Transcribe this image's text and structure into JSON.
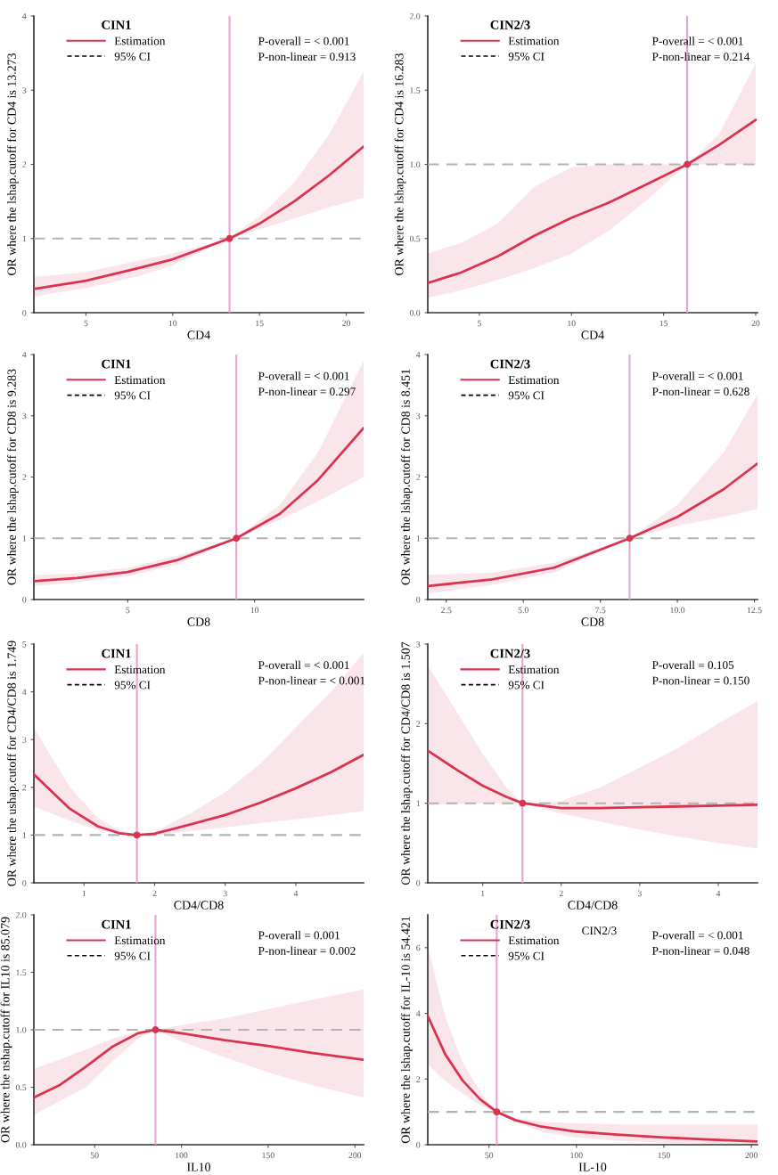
{
  "chart_data": [
    {
      "type": "line",
      "legend_title": "CIN1",
      "xlabel": "CD4",
      "ylabel": "OR where the lshap.cutoff for CD4 is 13.273",
      "xlim": [
        2,
        21
      ],
      "xticks": [
        5,
        10,
        15,
        20
      ],
      "ylim": [
        0,
        4
      ],
      "yticks": [
        0,
        1,
        2,
        3,
        4
      ],
      "legend": "top left",
      "grid": false,
      "annotations": [
        "95% CI",
        "P-overall = < 0.001",
        "P-non-linear = 0.913"
      ],
      "ref_lines": [
        {
          "axis": "x",
          "value": 13.273,
          "color": "#e9a3cc"
        },
        {
          "axis": "y",
          "value": 1,
          "color": "#b3b3b3",
          "line_style": "dashed"
        }
      ],
      "series": [
        {
          "name": "Estimation",
          "color": "#d9334f",
          "x": [
            2,
            5,
            8,
            10,
            13.273,
            15,
            17,
            19,
            21
          ],
          "values": [
            0.32,
            0.43,
            0.6,
            0.72,
            1,
            1.2,
            1.5,
            1.85,
            2.24
          ],
          "lower": [
            0.22,
            0.33,
            0.49,
            0.64,
            1,
            1.12,
            1.27,
            1.42,
            1.55
          ],
          "upper": [
            0.48,
            0.55,
            0.7,
            0.8,
            1,
            1.3,
            1.75,
            2.4,
            3.25
          ]
        },
        {
          "type": "scatter",
          "color": "#d9334f",
          "marker": "circle",
          "x": [
            13.273
          ],
          "values": [
            1
          ]
        }
      ]
    },
    {
      "type": "line",
      "legend_title": "CIN2/3",
      "xlabel": "CD4",
      "ylabel": "OR where the lshap.cutoff for CD4 is 16.283",
      "xlim": [
        2.2,
        20.1
      ],
      "xticks": [
        5,
        10,
        15,
        20
      ],
      "ylim": [
        0,
        2
      ],
      "yticks": [
        {
          "value": 0,
          "label": "0.0"
        },
        0.5,
        {
          "value": 1,
          "label": "1.0"
        },
        1.5,
        {
          "value": 2,
          "label": "2.0"
        }
      ],
      "legend": "top left",
      "grid": false,
      "annotations": [
        "95% CI",
        "P-overall = < 0.001",
        "P-non-linear = 0.214"
      ],
      "ref_lines": [
        {
          "axis": "x",
          "value": 16.283,
          "color": "#e9a3cc"
        },
        {
          "axis": "y",
          "value": 1,
          "color": "#b3b3b3",
          "line_style": "dashed"
        }
      ],
      "series": [
        {
          "name": "Estimation",
          "color": "#d9334f",
          "x": [
            2.2,
            4,
            6,
            8,
            10,
            12,
            14,
            16.283,
            18,
            20
          ],
          "values": [
            0.2,
            0.27,
            0.38,
            0.52,
            0.64,
            0.74,
            0.86,
            1,
            1.13,
            1.3
          ],
          "lower": [
            0.1,
            0.15,
            0.22,
            0.3,
            0.4,
            0.55,
            0.75,
            1,
            1,
            1
          ],
          "upper": [
            0.4,
            0.47,
            0.6,
            0.85,
            0.98,
            1,
            1,
            1,
            1.2,
            1.68
          ]
        },
        {
          "type": "scatter",
          "color": "#d9334f",
          "marker": "circle",
          "x": [
            16.283
          ],
          "values": [
            1
          ]
        }
      ]
    },
    {
      "type": "line",
      "legend_title": "CIN1",
      "xlabel": "CD8",
      "ylabel": "OR where the lshap.cutoff for CD8 is 9.283",
      "xlim": [
        1.3,
        14.3
      ],
      "xticks": [
        5,
        10
      ],
      "ylim": [
        0,
        4
      ],
      "yticks": [
        0,
        1,
        2,
        3,
        4
      ],
      "legend": "top left",
      "grid": false,
      "annotations": [
        "95% CI",
        "P-overall = < 0.001",
        "P-non-linear = 0.297"
      ],
      "ref_lines": [
        {
          "axis": "x",
          "value": 9.283,
          "color": "#e9a3cc"
        },
        {
          "axis": "y",
          "value": 1,
          "color": "#b3b3b3",
          "line_style": "dashed"
        }
      ],
      "series": [
        {
          "name": "Estimation",
          "color": "#d9334f",
          "x": [
            1.3,
            3,
            5,
            7,
            9.283,
            11,
            12.5,
            14.3
          ],
          "values": [
            0.3,
            0.35,
            0.45,
            0.65,
            1,
            1.4,
            1.95,
            2.8
          ],
          "lower": [
            0.22,
            0.28,
            0.38,
            0.58,
            1,
            1.3,
            1.6,
            2.0
          ],
          "upper": [
            0.4,
            0.43,
            0.52,
            0.72,
            1,
            1.55,
            2.4,
            3.9
          ]
        },
        {
          "type": "scatter",
          "color": "#d9334f",
          "marker": "circle",
          "x": [
            9.283
          ],
          "values": [
            1
          ]
        }
      ]
    },
    {
      "type": "line",
      "legend_title": "CIN2/3",
      "xlabel": "CD8",
      "ylabel": "OR where the lshap.cutoff for CD8 is 8.451",
      "xlim": [
        1.9,
        12.6
      ],
      "xticks": [
        {
          "value": 2.5,
          "label": "2.5"
        },
        {
          "value": 5,
          "label": "5.0"
        },
        {
          "value": 7.5,
          "label": "7.5"
        },
        {
          "value": 10,
          "label": "10.0"
        },
        {
          "value": 12.5,
          "label": "12.5"
        }
      ],
      "ylim": [
        0,
        4
      ],
      "yticks": [
        0,
        1,
        2,
        3,
        4
      ],
      "legend": "top left",
      "grid": false,
      "annotations": [
        "95% CI",
        "P-overall = < 0.001",
        "P-non-linear = 0.628"
      ],
      "ref_lines": [
        {
          "axis": "x",
          "value": 8.451,
          "color": "#e9a3cc"
        },
        {
          "axis": "y",
          "value": 1,
          "color": "#b3b3b3",
          "line_style": "dashed"
        }
      ],
      "series": [
        {
          "name": "Estimation",
          "color": "#d9334f",
          "x": [
            1.9,
            4,
            6,
            8.451,
            10,
            11.5,
            12.6
          ],
          "values": [
            0.22,
            0.33,
            0.52,
            1,
            1.35,
            1.8,
            2.22
          ],
          "lower": [
            0.1,
            0.24,
            0.44,
            1,
            1.2,
            1.35,
            1.48
          ],
          "upper": [
            0.4,
            0.44,
            0.6,
            1,
            1.55,
            2.4,
            3.35
          ]
        },
        {
          "type": "scatter",
          "color": "#d9334f",
          "marker": "circle",
          "x": [
            8.451
          ],
          "values": [
            1
          ]
        }
      ]
    },
    {
      "type": "line",
      "legend_title": "CIN1",
      "xlabel": "CD4/CD8",
      "ylabel": "OR where the ushap.cutoff for CD4/CD8 is 1.749",
      "xlim": [
        0.29,
        4.96
      ],
      "xticks": [
        1,
        2,
        3,
        4
      ],
      "ylim": [
        0,
        5
      ],
      "yticks": [
        0,
        1,
        2,
        3,
        4,
        5
      ],
      "legend": "top left",
      "grid": false,
      "annotations": [
        "95% CI",
        "P-overall = < 0.001",
        "P-non-linear = < 0.001"
      ],
      "ref_lines": [
        {
          "axis": "x",
          "value": 1.749,
          "color": "#e9a3cc"
        },
        {
          "axis": "y",
          "value": 1,
          "color": "#b3b3b3",
          "line_style": "dashed"
        }
      ],
      "series": [
        {
          "name": "Estimation",
          "color": "#d9334f",
          "x": [
            0.29,
            0.8,
            1.2,
            1.5,
            1.749,
            2,
            2.5,
            3,
            3.5,
            4,
            4.5,
            4.96
          ],
          "values": [
            2.27,
            1.55,
            1.18,
            1.04,
            1,
            1.03,
            1.22,
            1.42,
            1.68,
            1.98,
            2.32,
            2.68
          ],
          "lower": [
            1.6,
            1.3,
            1.1,
            1.02,
            1,
            1.0,
            1.08,
            1.16,
            1.25,
            1.33,
            1.42,
            1.5
          ],
          "upper": [
            3.25,
            2.0,
            1.35,
            1.1,
            1,
            1.07,
            1.45,
            1.9,
            2.5,
            3.25,
            4.0,
            4.82
          ]
        },
        {
          "type": "scatter",
          "color": "#d9334f",
          "marker": "circle",
          "x": [
            1.749
          ],
          "values": [
            1
          ]
        }
      ]
    },
    {
      "type": "line",
      "legend_title": "CIN2/3",
      "xlabel": "CD4/CD8",
      "ylabel": "OR where the lshap.cutoff for CD4/CD8 is 1.507",
      "xlim": [
        0.3,
        4.5
      ],
      "xticks": [
        1,
        2,
        3,
        4
      ],
      "ylim": [
        0,
        3
      ],
      "yticks": [
        0,
        1,
        2,
        3
      ],
      "legend": "top left",
      "grid": false,
      "annotations": [
        "95% CI",
        "P-overall = 0.105",
        "P-non-linear = 0.150"
      ],
      "ref_lines": [
        {
          "axis": "x",
          "value": 1.507,
          "color": "#e9a3cc"
        },
        {
          "axis": "y",
          "value": 1,
          "color": "#b3b3b3",
          "line_style": "dashed"
        }
      ],
      "series": [
        {
          "name": "Estimation",
          "color": "#d9334f",
          "x": [
            0.3,
            0.7,
            1,
            1.3,
            1.507,
            2,
            2.5,
            3,
            3.5,
            4,
            4.5
          ],
          "values": [
            1.66,
            1.4,
            1.22,
            1.08,
            1,
            0.94,
            0.94,
            0.95,
            0.96,
            0.97,
            0.98
          ],
          "lower": [
            0.98,
            0.99,
            1.0,
            1.0,
            1,
            0.87,
            0.77,
            0.67,
            0.58,
            0.5,
            0.43
          ],
          "upper": [
            2.73,
            2.1,
            1.62,
            1.2,
            1,
            1.03,
            1.2,
            1.45,
            1.7,
            2.0,
            2.28
          ]
        },
        {
          "type": "scatter",
          "color": "#d9334f",
          "marker": "circle",
          "x": [
            1.507
          ],
          "values": [
            1
          ]
        }
      ]
    },
    {
      "type": "line",
      "legend_title": "CIN1",
      "xlabel": "IL10",
      "ylabel": "OR where the nshap.cutoff for IL10 is 85.079",
      "xlim": [
        15,
        205
      ],
      "xticks": [
        50,
        100,
        150,
        200
      ],
      "ylim": [
        0,
        2
      ],
      "yticks": [
        {
          "value": 0,
          "label": "0.0"
        },
        0.5,
        {
          "value": 1,
          "label": "1.0"
        },
        1.5,
        {
          "value": 2,
          "label": "2.0"
        }
      ],
      "legend": "top left",
      "grid": false,
      "annotations": [
        "95% CI",
        "P-overall = 0.001",
        "P-non-linear = 0.002"
      ],
      "ref_lines": [
        {
          "axis": "x",
          "value": 85.079,
          "color": "#e9a3cc"
        },
        {
          "axis": "y",
          "value": 1,
          "color": "#b3b3b3",
          "line_style": "dashed"
        }
      ],
      "series": [
        {
          "name": "Estimation",
          "color": "#d9334f",
          "x": [
            15,
            30,
            45,
            60,
            75,
            85.079,
            100,
            125,
            150,
            175,
            205
          ],
          "values": [
            0.41,
            0.52,
            0.68,
            0.85,
            0.97,
            1,
            0.97,
            0.91,
            0.86,
            0.8,
            0.74
          ],
          "lower": [
            0.26,
            0.38,
            0.5,
            0.72,
            0.92,
            1,
            0.9,
            0.76,
            0.63,
            0.52,
            0.41
          ],
          "upper": [
            0.66,
            0.74,
            0.83,
            0.92,
            0.99,
            1,
            1.04,
            1.1,
            1.18,
            1.26,
            1.35
          ]
        },
        {
          "type": "scatter",
          "color": "#d9334f",
          "marker": "circle",
          "x": [
            85.079
          ],
          "values": [
            1
          ]
        }
      ]
    },
    {
      "type": "line",
      "legend_title": "CIN2/3",
      "xlabel": "IL-10",
      "ylabel": "OR where the lshap.cutoff for IL-10 is 54.421",
      "xlim": [
        15,
        203.5
      ],
      "xticks": [
        50,
        100,
        150,
        200
      ],
      "ylim": [
        0,
        7
      ],
      "yticks": [
        0,
        2,
        4,
        6
      ],
      "legend": "top left",
      "grid": false,
      "annotations": [
        "95% CI",
        "P-overall = < 0.001",
        "P-non-linear = 0.048",
        "CIN2/3"
      ],
      "ref_lines": [
        {
          "axis": "x",
          "value": 54.421,
          "color": "#e9a3cc"
        },
        {
          "axis": "y",
          "value": 1,
          "color": "#b3b3b3",
          "line_style": "dashed"
        }
      ],
      "series": [
        {
          "name": "Estimation",
          "color": "#d9334f",
          "x": [
            15,
            25,
            35,
            45,
            54.421,
            65,
            80,
            100,
            125,
            150,
            175,
            203.5
          ],
          "values": [
            3.92,
            2.75,
            1.95,
            1.38,
            1,
            0.75,
            0.55,
            0.4,
            0.3,
            0.22,
            0.16,
            0.1
          ],
          "lower": [
            2.45,
            1.95,
            1.55,
            1.2,
            1,
            0.7,
            0.4,
            0.22,
            0.12,
            0.06,
            0.03,
            0.02
          ],
          "upper": [
            6.05,
            3.9,
            2.5,
            1.6,
            1,
            0.82,
            0.7,
            0.65,
            0.62,
            0.62,
            0.62,
            0.62
          ]
        },
        {
          "type": "scatter",
          "color": "#d9334f",
          "marker": "circle",
          "x": [
            54.421
          ],
          "values": [
            1
          ]
        }
      ]
    }
  ]
}
